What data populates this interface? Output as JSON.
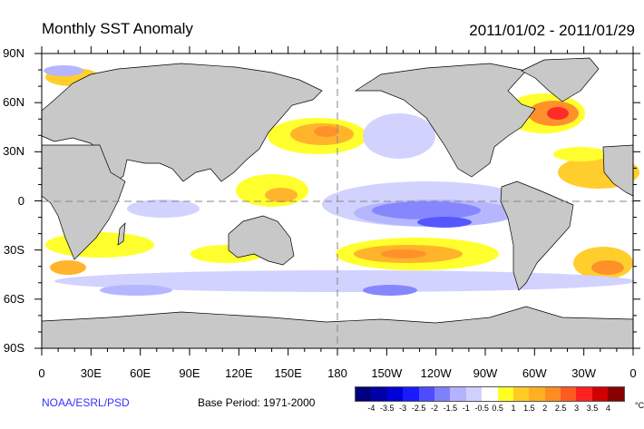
{
  "header": {
    "title": "Monthly SST Anomaly",
    "date_range": "2011/01/02 - 2011/01/29"
  },
  "axes": {
    "lat_labels": [
      "90N",
      "60N",
      "30N",
      "0",
      "30S",
      "60S",
      "90S"
    ],
    "lon_labels": [
      "0",
      "30E",
      "60E",
      "90E",
      "120E",
      "150E",
      "180",
      "150W",
      "120W",
      "90W",
      "60W",
      "30W",
      "0"
    ]
  },
  "footer": {
    "credit": "NOAA/ESRL/PSD",
    "base_period": "Base Period: 1971-2000"
  },
  "colorbar": {
    "labels": [
      "-4",
      "-3.5",
      "-3",
      "-2.5",
      "-2",
      "-1.5",
      "-1",
      "-0.5",
      "0.5",
      "1",
      "1.5",
      "2",
      "2.5",
      "3",
      "3.5",
      "4"
    ],
    "unit": "°C",
    "colors": [
      "#00007f",
      "#0000a8",
      "#0000d8",
      "#1a1aff",
      "#4d4dff",
      "#8080ff",
      "#b3b3ff",
      "#d0d0ff",
      "#ffffff",
      "#ffff22",
      "#ffcc22",
      "#ffb020",
      "#ff8c20",
      "#ff5a20",
      "#ff2020",
      "#d00000",
      "#8a0000"
    ]
  }
}
